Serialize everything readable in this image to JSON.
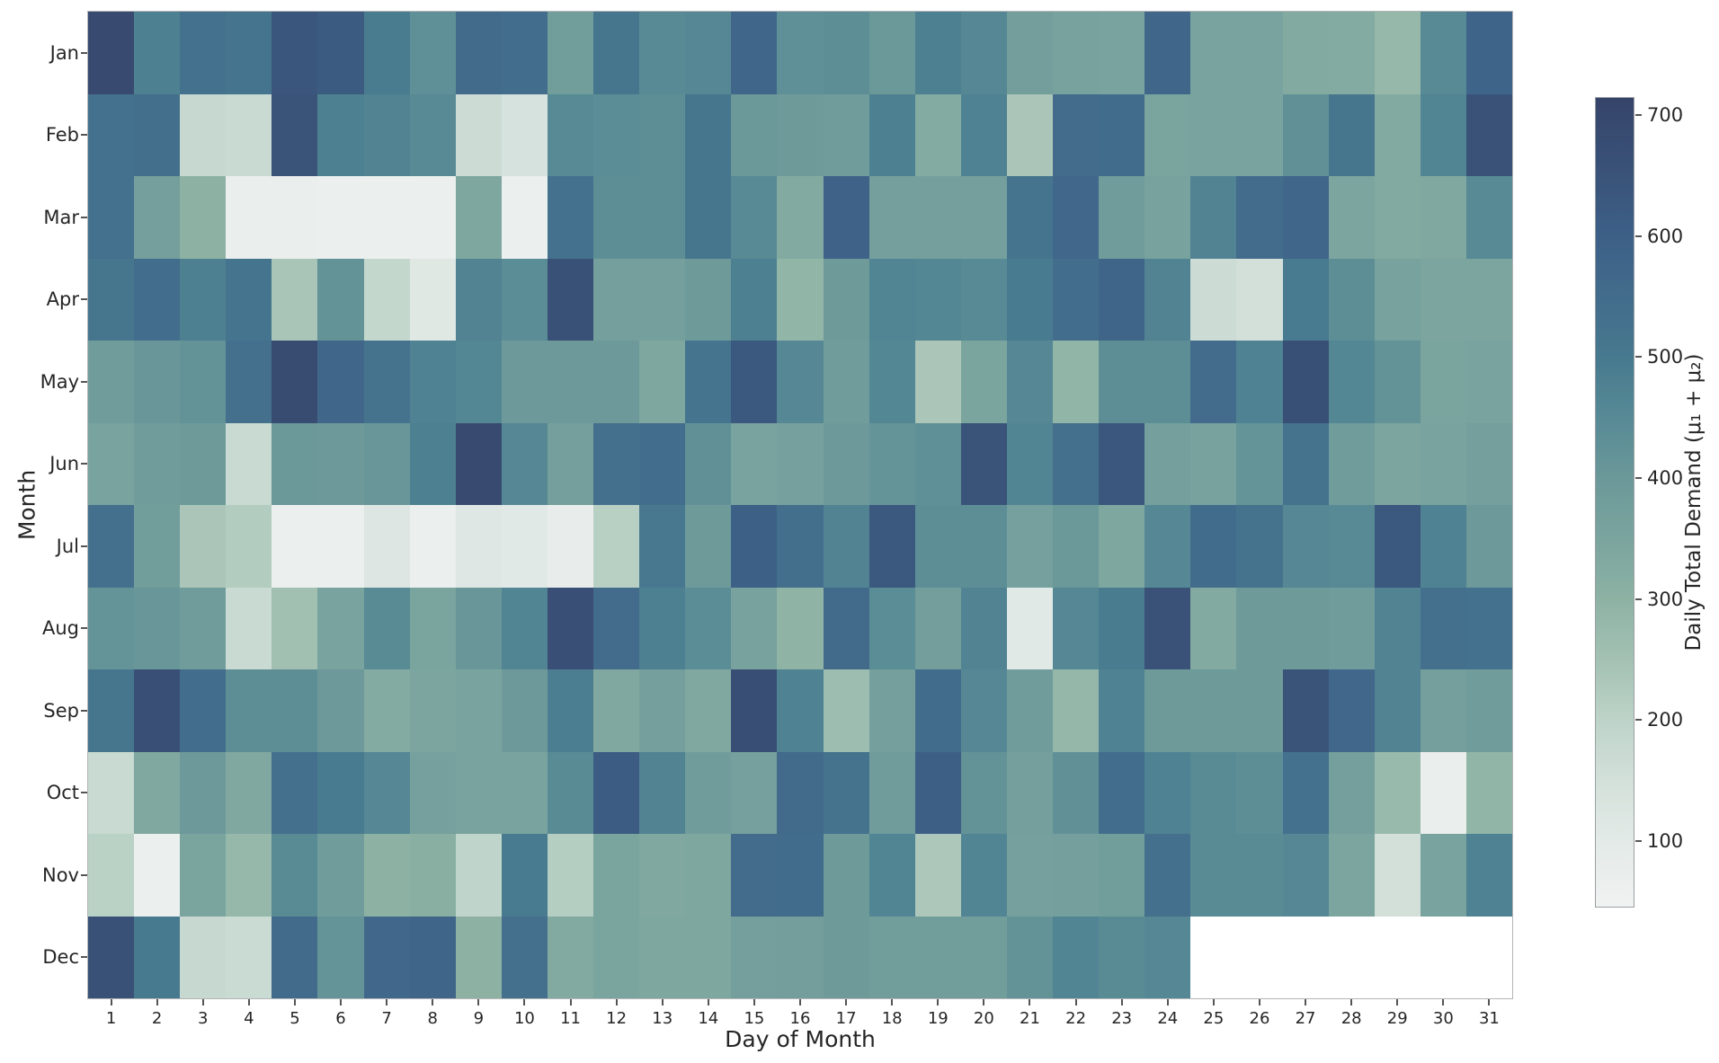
{
  "figure": {
    "xlabel": "Day of Month",
    "ylabel": "Month"
  },
  "colorbar": {
    "label": "Daily Total Demand (μ₁ + μ₂)",
    "ticks": [
      100,
      200,
      300,
      400,
      500,
      600,
      700
    ],
    "vmin": 45,
    "vmax": 715,
    "colormap_stops": [
      {
        "value": 45,
        "color": "#f0f2f2"
      },
      {
        "value": 100,
        "color": "#e3eae7"
      },
      {
        "value": 150,
        "color": "#d3e0da"
      },
      {
        "value": 200,
        "color": "#bdd3c8"
      },
      {
        "value": 250,
        "color": "#a3c1b3"
      },
      {
        "value": 300,
        "color": "#8db2a4"
      },
      {
        "value": 350,
        "color": "#7aa49e"
      },
      {
        "value": 400,
        "color": "#6b9899"
      },
      {
        "value": 450,
        "color": "#578a95"
      },
      {
        "value": 500,
        "color": "#47798f"
      },
      {
        "value": 550,
        "color": "#426c8c"
      },
      {
        "value": 600,
        "color": "#3d6087"
      },
      {
        "value": 650,
        "color": "#3a5379"
      },
      {
        "value": 700,
        "color": "#37486e"
      },
      {
        "value": 715,
        "color": "#364368"
      }
    ],
    "missing_color": "#ffffff"
  },
  "chart_data": {
    "type": "heatmap",
    "title": "",
    "xlabel": "Day of Month",
    "ylabel": "Month",
    "value_label": "Daily Total Demand (μ₁ + μ₂)",
    "x": [
      1,
      2,
      3,
      4,
      5,
      6,
      7,
      8,
      9,
      10,
      11,
      12,
      13,
      14,
      15,
      16,
      17,
      18,
      19,
      20,
      21,
      22,
      23,
      24,
      25,
      26,
      27,
      28,
      29,
      30,
      31
    ],
    "y": [
      "Jan",
      "Feb",
      "Mar",
      "Apr",
      "May",
      "Jun",
      "Jul",
      "Aug",
      "Sep",
      "Oct",
      "Nov",
      "Dec"
    ],
    "value_range": [
      45,
      715
    ],
    "values": [
      [
        690,
        480,
        530,
        520,
        640,
        620,
        490,
        430,
        560,
        545,
        380,
        510,
        450,
        455,
        575,
        430,
        435,
        400,
        480,
        455,
        375,
        360,
        355,
        570,
        355,
        355,
        330,
        325,
        280,
        450,
        585
      ],
      [
        530,
        540,
        180,
        175,
        650,
        480,
        470,
        450,
        165,
        140,
        450,
        440,
        435,
        510,
        400,
        390,
        385,
        480,
        325,
        475,
        235,
        555,
        550,
        350,
        355,
        355,
        425,
        510,
        330,
        465,
        655
      ],
      [
        530,
        370,
        300,
        70,
        70,
        65,
        65,
        65,
        340,
        65,
        530,
        435,
        435,
        510,
        450,
        330,
        590,
        370,
        370,
        370,
        520,
        565,
        385,
        360,
        470,
        555,
        575,
        345,
        330,
        335,
        450
      ],
      [
        510,
        545,
        480,
        520,
        240,
        420,
        185,
        110,
        470,
        440,
        660,
        370,
        370,
        390,
        480,
        290,
        390,
        465,
        460,
        450,
        495,
        545,
        580,
        470,
        165,
        150,
        495,
        435,
        360,
        345,
        345
      ],
      [
        385,
        405,
        420,
        535,
        680,
        570,
        525,
        475,
        460,
        395,
        395,
        395,
        340,
        520,
        630,
        455,
        385,
        460,
        235,
        350,
        455,
        290,
        435,
        435,
        555,
        475,
        665,
        460,
        420,
        350,
        355
      ],
      [
        355,
        385,
        390,
        175,
        400,
        395,
        405,
        480,
        690,
        455,
        370,
        535,
        545,
        425,
        355,
        365,
        395,
        415,
        430,
        650,
        465,
        535,
        635,
        370,
        360,
        415,
        525,
        385,
        345,
        355,
        370
      ],
      [
        535,
        380,
        235,
        220,
        65,
        65,
        120,
        65,
        115,
        105,
        80,
        210,
        505,
        390,
        600,
        540,
        470,
        630,
        435,
        435,
        365,
        400,
        340,
        455,
        550,
        525,
        455,
        450,
        630,
        475,
        395
      ],
      [
        415,
        405,
        385,
        175,
        255,
        355,
        445,
        350,
        405,
        465,
        670,
        555,
        480,
        440,
        360,
        295,
        560,
        440,
        375,
        470,
        105,
        455,
        490,
        655,
        330,
        390,
        390,
        385,
        470,
        535,
        530
      ],
      [
        515,
        670,
        545,
        435,
        435,
        395,
        325,
        345,
        355,
        395,
        485,
        335,
        370,
        335,
        675,
        475,
        265,
        370,
        550,
        455,
        385,
        285,
        475,
        390,
        390,
        390,
        650,
        565,
        470,
        370,
        385
      ],
      [
        175,
        335,
        395,
        335,
        535,
        495,
        455,
        365,
        355,
        355,
        445,
        615,
        470,
        385,
        365,
        560,
        525,
        385,
        605,
        420,
        370,
        425,
        545,
        475,
        445,
        435,
        530,
        370,
        275,
        70,
        290
      ],
      [
        205,
        65,
        350,
        280,
        445,
        385,
        300,
        310,
        195,
        495,
        215,
        350,
        335,
        340,
        555,
        550,
        390,
        465,
        230,
        465,
        365,
        370,
        380,
        535,
        445,
        445,
        455,
        345,
        150,
        355,
        475
      ],
      [
        660,
        500,
        180,
        170,
        560,
        415,
        565,
        580,
        300,
        535,
        330,
        350,
        340,
        340,
        370,
        375,
        390,
        380,
        380,
        380,
        420,
        465,
        445,
        455,
        null,
        null,
        null,
        null,
        null,
        null,
        null
      ]
    ]
  }
}
